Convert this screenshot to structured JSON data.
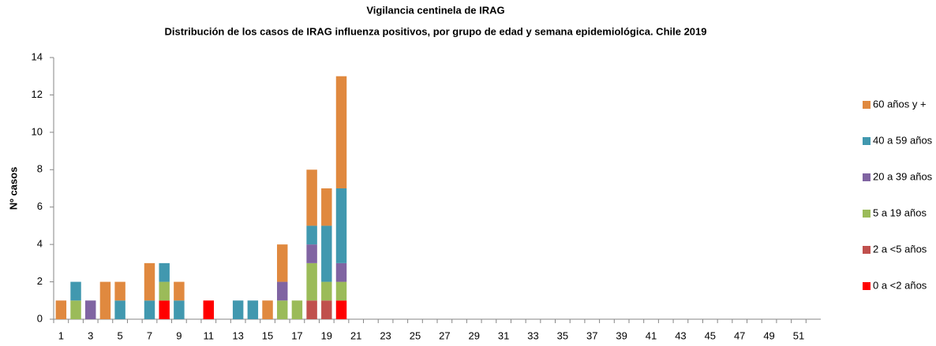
{
  "chart_data": {
    "type": "stacked_bar",
    "title": "Vigilancia  centinela de IRAG",
    "subtitle": "Distribución  de los casos de IRAG influenza positivos,  por grupo de edad y semana epidemiológica.  Chile 2019",
    "y_label": "Nº casos",
    "categories": [
      1,
      null,
      3,
      null,
      5,
      null,
      7,
      null,
      9,
      null,
      11,
      null,
      13,
      null,
      15,
      null,
      17,
      null,
      19,
      null,
      21,
      null,
      23,
      null,
      25,
      null,
      27,
      null,
      29,
      null,
      31,
      null,
      33,
      null,
      35,
      null,
      37,
      null,
      39,
      null,
      41,
      null,
      43,
      null,
      45,
      null,
      47,
      null,
      49,
      null,
      51,
      null
    ],
    "ylim": [
      0,
      14
    ],
    "yticks": [
      0,
      2,
      4,
      6,
      8,
      10,
      12,
      14
    ],
    "series": [
      {
        "name": "0 a <2 años",
        "color": "#ff0000",
        "values": [
          0,
          0,
          0,
          0,
          0,
          0,
          0,
          1,
          0,
          0,
          1,
          0,
          0,
          0,
          0,
          0,
          0,
          0,
          0,
          1,
          0,
          0,
          0,
          0,
          0,
          0,
          0,
          0,
          0,
          0,
          0,
          0,
          0,
          0,
          0,
          0,
          0,
          0,
          0,
          0,
          0,
          0,
          0,
          0,
          0,
          0,
          0,
          0,
          0,
          0,
          0,
          0
        ]
      },
      {
        "name": "2 a <5 años",
        "color": "#c0504d",
        "values": [
          0,
          0,
          0,
          0,
          0,
          0,
          0,
          0,
          0,
          0,
          0,
          0,
          0,
          0,
          0,
          0,
          0,
          1,
          1,
          0,
          0,
          0,
          0,
          0,
          0,
          0,
          0,
          0,
          0,
          0,
          0,
          0,
          0,
          0,
          0,
          0,
          0,
          0,
          0,
          0,
          0,
          0,
          0,
          0,
          0,
          0,
          0,
          0,
          0,
          0,
          0,
          0
        ]
      },
      {
        "name": "5 a 19 años",
        "color": "#9bbb59",
        "values": [
          0,
          1,
          0,
          0,
          0,
          0,
          0,
          1,
          0,
          0,
          0,
          0,
          0,
          0,
          0,
          1,
          1,
          2,
          1,
          1,
          0,
          0,
          0,
          0,
          0,
          0,
          0,
          0,
          0,
          0,
          0,
          0,
          0,
          0,
          0,
          0,
          0,
          0,
          0,
          0,
          0,
          0,
          0,
          0,
          0,
          0,
          0,
          0,
          0,
          0,
          0,
          0
        ]
      },
      {
        "name": "20 a 39 años",
        "color": "#8064a2",
        "values": [
          0,
          0,
          1,
          0,
          0,
          0,
          0,
          0,
          0,
          0,
          0,
          0,
          0,
          0,
          0,
          1,
          0,
          1,
          0,
          1,
          0,
          0,
          0,
          0,
          0,
          0,
          0,
          0,
          0,
          0,
          0,
          0,
          0,
          0,
          0,
          0,
          0,
          0,
          0,
          0,
          0,
          0,
          0,
          0,
          0,
          0,
          0,
          0,
          0,
          0,
          0,
          0
        ]
      },
      {
        "name": "40 a  59 años",
        "color": "#4198af",
        "values": [
          0,
          1,
          0,
          0,
          1,
          0,
          1,
          1,
          1,
          0,
          0,
          0,
          1,
          1,
          0,
          0,
          0,
          1,
          3,
          4,
          0,
          0,
          0,
          0,
          0,
          0,
          0,
          0,
          0,
          0,
          0,
          0,
          0,
          0,
          0,
          0,
          0,
          0,
          0,
          0,
          0,
          0,
          0,
          0,
          0,
          0,
          0,
          0,
          0,
          0,
          0,
          0
        ]
      },
      {
        "name": "60 años y +",
        "color": "#e0893f",
        "values": [
          1,
          0,
          0,
          2,
          1,
          0,
          2,
          0,
          1,
          0,
          0,
          0,
          0,
          0,
          1,
          2,
          0,
          3,
          2,
          6,
          0,
          0,
          0,
          0,
          0,
          0,
          0,
          0,
          0,
          0,
          0,
          0,
          0,
          0,
          0,
          0,
          0,
          0,
          0,
          0,
          0,
          0,
          0,
          0,
          0,
          0,
          0,
          0,
          0,
          0,
          0,
          0
        ]
      }
    ]
  }
}
